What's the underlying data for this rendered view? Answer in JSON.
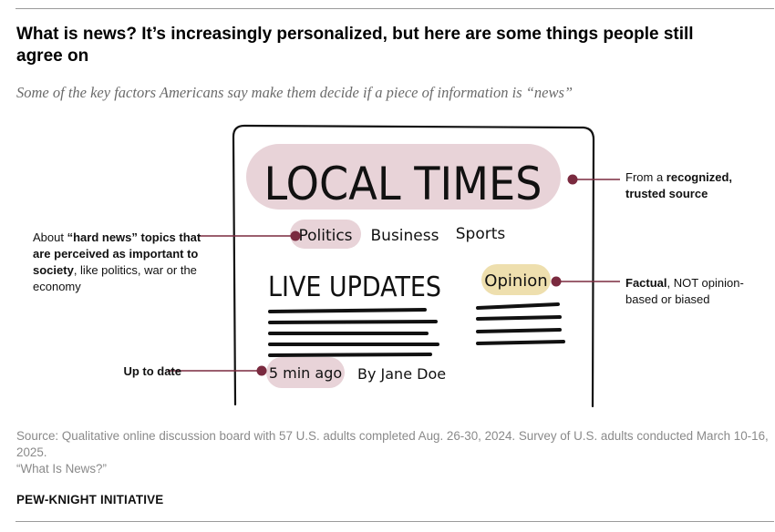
{
  "title": "What is news? It’s increasingly personalized, but here are some things people still agree on",
  "subtitle": "Some of the key factors Americans say make them decide if a piece of information is “news”",
  "illustration": {
    "masthead": "LOCAL TIMES",
    "sections": [
      "Politics",
      "Business",
      "Sports"
    ],
    "headline": "LIVE UPDATES",
    "opinion_tag": "Opinion",
    "timestamp": "5 min ago",
    "byline": "By Jane Doe"
  },
  "callouts": {
    "source": {
      "pre": "From a ",
      "bold": "recognized, trusted source",
      "post": ""
    },
    "topics": {
      "pre": "About ",
      "bold": "“hard news” topics that are perceived as important to society",
      "post": ", like politics, war or the economy"
    },
    "factual": {
      "pre": "",
      "bold": "Factual",
      "post": ", NOT opinion-based or biased"
    },
    "uptodate": {
      "text": "Up to date"
    }
  },
  "source_note": "Source: Qualitative online discussion board with 57 U.S. adults completed Aug. 26-30, 2024. Survey of U.S. adults conducted March 10-16, 2025.",
  "report_title": "“What Is News?”",
  "organization": "PEW-KNIGHT INITIATIVE",
  "colors": {
    "highlight": "#e8d3d8",
    "opinion_highlight": "#eedfae",
    "connector": "#7a2a3f",
    "ink": "#111111",
    "muted_text": "#8a8a8a"
  }
}
